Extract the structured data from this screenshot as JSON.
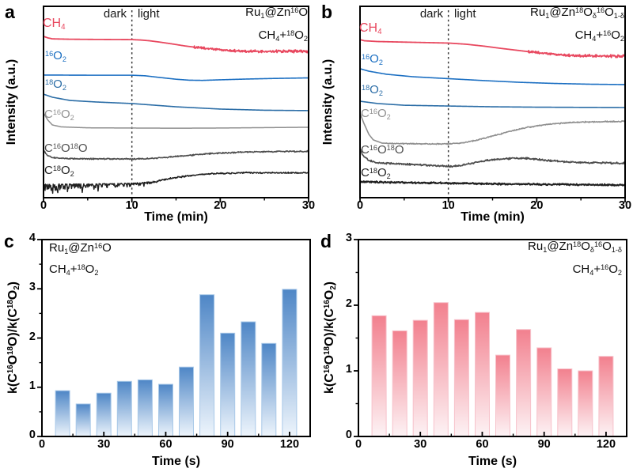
{
  "chart_data": [
    {
      "panel": "a",
      "letter": "a",
      "type": "line",
      "title": "Ru_{1}@Zn^{16}O",
      "subtitle": "CH_{4}+^{18}O_{2}",
      "dark_label": "dark",
      "light_label": "light",
      "xlabel": "Time (min)",
      "ylabel": "Intensity (a.u.)",
      "xlim": [
        0,
        30
      ],
      "ylim": [
        0,
        100
      ],
      "x_ticks": [
        0,
        10,
        20,
        30
      ],
      "x_minor_ticks": [
        5,
        15,
        25
      ],
      "light_on_min": 10,
      "series": [
        {
          "name": "CH4",
          "label": "CH_{4}",
          "color": "#e8485f",
          "width": 1.8,
          "points": [
            [
              0,
              84.3
            ],
            [
              0.5,
              83.5
            ],
            [
              1,
              83
            ],
            [
              3,
              82.8
            ],
            [
              6,
              82.7
            ],
            [
              10,
              82.6
            ],
            [
              11,
              82.4
            ],
            [
              12,
              82
            ],
            [
              13,
              81.4
            ],
            [
              14.5,
              80.4
            ],
            [
              16,
              79.3
            ],
            [
              17.5,
              78.4
            ],
            [
              19,
              77.7
            ],
            [
              21,
              76.9
            ],
            [
              23,
              76.5
            ],
            [
              25,
              76.3
            ],
            [
              27,
              76.6
            ],
            [
              30,
              76.4
            ]
          ],
          "noise": [
            {
              "from": 17,
              "to": 30,
              "amp0": 0.7,
              "amp1": 0.95,
              "bias": "sym"
            }
          ]
        },
        {
          "name": "16O2",
          "label": "^{16}O_{2}",
          "color": "#1b6fc2",
          "width": 1.6,
          "points": [
            [
              0,
              64.1
            ],
            [
              5,
              64
            ],
            [
              10,
              64
            ],
            [
              11.5,
              63.7
            ],
            [
              13,
              62.9
            ],
            [
              15,
              61.9
            ],
            [
              16.5,
              61.4
            ],
            [
              18,
              61.3
            ],
            [
              20,
              61.6
            ],
            [
              23,
              62
            ],
            [
              26,
              62.3
            ],
            [
              30,
              62.6
            ]
          ]
        },
        {
          "name": "18O2",
          "label": "^{18}O_{2}",
          "color": "#2b6da6",
          "width": 1.6,
          "points": [
            [
              0,
              54.1
            ],
            [
              1,
              52.5
            ],
            [
              3,
              50.8
            ],
            [
              6,
              50
            ],
            [
              10,
              49.2
            ],
            [
              15,
              47.5
            ],
            [
              20,
              46.3
            ],
            [
              25,
              45.7
            ],
            [
              30,
              45.5
            ]
          ]
        },
        {
          "name": "C16O2",
          "label": "C^{16}O_{2}",
          "color": "#8f8f8f",
          "width": 1.5,
          "points": [
            [
              0,
              44.2
            ],
            [
              0.5,
              40.5
            ],
            [
              1,
              38
            ],
            [
              2,
              37
            ],
            [
              5,
              36.5
            ],
            [
              10,
              36.4
            ],
            [
              15,
              36.3
            ],
            [
              20,
              36.4
            ],
            [
              25,
              36.6
            ],
            [
              30,
              36.8
            ]
          ]
        },
        {
          "name": "C16O18O",
          "label": "C^{16}O^{18}O",
          "color": "#4d4d4d",
          "width": 1.6,
          "points": [
            [
              0,
              24.8
            ],
            [
              0.4,
              22.3
            ],
            [
              1,
              20.9
            ],
            [
              3,
              20.4
            ],
            [
              6,
              20.3
            ],
            [
              10,
              20.2
            ],
            [
              12,
              20.4
            ],
            [
              14,
              21.1
            ],
            [
              16,
              21.9
            ],
            [
              18,
              22.8
            ],
            [
              20,
              23.3
            ],
            [
              23,
              23.9
            ],
            [
              26,
              24.1
            ],
            [
              30,
              24.2
            ]
          ],
          "noise": [
            {
              "from": 0,
              "to": 30,
              "amp0": 0.4,
              "amp1": 0.4,
              "bias": "sym"
            }
          ]
        },
        {
          "name": "C18O2",
          "label": "C^{18}O_{2}",
          "color": "#1f1f1f",
          "width": 1.5,
          "points": [
            [
              0,
              7
            ],
            [
              4,
              7.2
            ],
            [
              8,
              7.4
            ],
            [
              10,
              7.6
            ],
            [
              12,
              8.3
            ],
            [
              13.5,
              9.3
            ],
            [
              15,
              10.5
            ],
            [
              16.5,
              11.5
            ],
            [
              18,
              12.2
            ],
            [
              20,
              12.7
            ],
            [
              23,
              13
            ],
            [
              26,
              13
            ],
            [
              30,
              13
            ]
          ],
          "noise": [
            {
              "from": 0,
              "to": 13,
              "amp0": 3.5,
              "amp1": 0.9,
              "bias": "down"
            },
            {
              "from": 13,
              "to": 30,
              "amp0": 0.5,
              "amp1": 0.4,
              "bias": "sym"
            }
          ]
        }
      ]
    },
    {
      "panel": "b",
      "letter": "b",
      "type": "line",
      "title": "Ru_{1}@Zn^{18}O_{δ}^{16}O_{1-δ}",
      "subtitle": "CH_{4}+^{16}O_{2}",
      "dark_label": "dark",
      "light_label": "light",
      "xlabel": "Time (min)",
      "ylabel": "Intensity (a.u.)",
      "xlim": [
        0,
        30
      ],
      "ylim": [
        0,
        100
      ],
      "x_ticks": [
        0,
        10,
        20,
        30
      ],
      "x_minor_ticks": [
        5,
        15,
        25
      ],
      "light_on_min": 10,
      "series": [
        {
          "name": "CH4",
          "label": "CH_{4}",
          "color": "#e8485f",
          "width": 1.8,
          "points": [
            [
              0,
              82.6
            ],
            [
              0.5,
              82
            ],
            [
              2,
              81.6
            ],
            [
              5,
              81.3
            ],
            [
              8,
              81
            ],
            [
              10,
              80.8
            ],
            [
              12,
              80.2
            ],
            [
              14,
              79.2
            ],
            [
              16,
              78
            ],
            [
              18,
              76.9
            ],
            [
              20,
              75.8
            ],
            [
              22,
              74.9
            ],
            [
              24,
              74.3
            ],
            [
              26,
              74
            ],
            [
              30,
              74
            ]
          ],
          "noise": [
            {
              "from": 19,
              "to": 30,
              "amp0": 0.7,
              "amp1": 1.0,
              "bias": "sym"
            }
          ]
        },
        {
          "name": "16O2",
          "label": "^{16}O_{2}",
          "color": "#1b6fc2",
          "width": 1.6,
          "points": [
            [
              0,
              67.4
            ],
            [
              1,
              66.1
            ],
            [
              3,
              64.5
            ],
            [
              6,
              63.2
            ],
            [
              10,
              62.2
            ],
            [
              14,
              61.2
            ],
            [
              18,
              60.3
            ],
            [
              22,
              59.7
            ],
            [
              26,
              59.3
            ],
            [
              30,
              59.1
            ]
          ]
        },
        {
          "name": "18O2",
          "label": "^{18}O_{2}",
          "color": "#2b6da6",
          "width": 1.6,
          "points": [
            [
              0,
              50.4
            ],
            [
              2,
              49.2
            ],
            [
              5,
              48.3
            ],
            [
              10,
              47.9
            ],
            [
              15,
              47.5
            ],
            [
              20,
              47.3
            ],
            [
              30,
              47.1
            ]
          ]
        },
        {
          "name": "C16O2",
          "label": "C^{16}O_{2}",
          "color": "#8f8f8f",
          "width": 1.6,
          "points": [
            [
              0,
              44.2
            ],
            [
              0.4,
              39.3
            ],
            [
              1,
              33.1
            ],
            [
              1.5,
              30.2
            ],
            [
              2.5,
              28.5
            ],
            [
              5,
              28.2
            ],
            [
              8,
              28.1
            ],
            [
              10,
              28.1
            ],
            [
              11.5,
              28.5
            ],
            [
              13,
              29.8
            ],
            [
              15,
              32.2
            ],
            [
              17,
              34.7
            ],
            [
              19,
              36.8
            ],
            [
              21,
              38.2
            ],
            [
              23,
              39
            ],
            [
              25,
              39.5
            ],
            [
              27,
              39.7
            ],
            [
              30,
              39.9
            ]
          ],
          "noise": [
            {
              "from": 3,
              "to": 30,
              "amp0": 0.3,
              "amp1": 0.4,
              "bias": "sym"
            }
          ]
        },
        {
          "name": "C16O18O",
          "label": "C^{16}O^{18}O",
          "color": "#4d4d4d",
          "width": 1.7,
          "points": [
            [
              0,
              25.6
            ],
            [
              0.3,
              22.3
            ],
            [
              1,
              19.4
            ],
            [
              2,
              18.2
            ],
            [
              4,
              17.8
            ],
            [
              7,
              17.1
            ],
            [
              9,
              16.6
            ],
            [
              10,
              16.3
            ],
            [
              11,
              16.5
            ],
            [
              12.5,
              17.8
            ],
            [
              14,
              19.2
            ],
            [
              16,
              20.2
            ],
            [
              17.5,
              20.7
            ],
            [
              19,
              20.5
            ],
            [
              21,
              19.6
            ],
            [
              23,
              18.8
            ],
            [
              25,
              18.4
            ],
            [
              27,
              18.2
            ],
            [
              30,
              18
            ]
          ],
          "noise": [
            {
              "from": 0,
              "to": 30,
              "amp0": 0.55,
              "amp1": 0.55,
              "bias": "sym"
            }
          ]
        },
        {
          "name": "C18O2",
          "label": "C^{18}O_{2}",
          "color": "#1f1f1f",
          "width": 2.0,
          "points": [
            [
              0,
              8.3
            ],
            [
              5,
              7.9
            ],
            [
              10,
              7.6
            ],
            [
              15,
              7.2
            ],
            [
              20,
              7
            ],
            [
              25,
              6.8
            ],
            [
              30,
              6.6
            ]
          ],
          "noise": [
            {
              "from": 0,
              "to": 30,
              "amp0": 0.5,
              "amp1": 0.5,
              "bias": "sym"
            }
          ]
        }
      ]
    },
    {
      "panel": "c",
      "letter": "c",
      "type": "bar",
      "title": "Ru_{1}@Zn^{16}O",
      "subtitle": "CH_{4}+^{18}O_{2}",
      "xlabel": "Time (s)",
      "ylabel": "k(C^{16}O^{18}O)/k(C^{18}O_{2})",
      "xlim": [
        0,
        130
      ],
      "ylim": [
        0,
        4
      ],
      "x_ticks": [
        0,
        30,
        60,
        90,
        120
      ],
      "x_minor_ticks": [
        15,
        45,
        75,
        105
      ],
      "y_ticks": [
        0,
        1,
        2,
        3,
        4
      ],
      "y_minor_step": 0.5,
      "categories": [
        10,
        20,
        30,
        40,
        50,
        60,
        70,
        80,
        90,
        100,
        110,
        120
      ],
      "values": [
        0.93,
        0.66,
        0.88,
        1.12,
        1.15,
        1.06,
        1.41,
        2.88,
        2.1,
        2.33,
        1.89,
        2.99
      ],
      "bar_top_color": "#4e86c6",
      "bar_bottom_color": "#eef5fc",
      "bar_edge_color": "#a9c9e8"
    },
    {
      "panel": "d",
      "letter": "d",
      "type": "bar",
      "title": "Ru_{1}@Zn^{18}O_{δ}^{16}O_{1-δ}",
      "subtitle": "CH_{4}+^{16}O_{2}",
      "xlabel": "Time (s)",
      "ylabel": "k(C^{16}O^{18}O)/k(C^{16}O_{2})",
      "xlim": [
        0,
        130
      ],
      "ylim": [
        0,
        3
      ],
      "x_ticks": [
        0,
        30,
        60,
        90,
        120
      ],
      "x_minor_ticks": [
        15,
        45,
        75,
        105
      ],
      "y_ticks": [
        0,
        1,
        2,
        3
      ],
      "y_minor_step": 0.5,
      "categories": [
        10,
        20,
        30,
        40,
        50,
        60,
        70,
        80,
        90,
        100,
        110,
        120
      ],
      "values": [
        1.84,
        1.61,
        1.77,
        2.04,
        1.78,
        1.89,
        1.24,
        1.63,
        1.35,
        1.03,
        1.0,
        1.22
      ],
      "bar_top_color": "#f2808e",
      "bar_bottom_color": "#fdf3f5",
      "bar_edge_color": "#f7c2cb"
    }
  ]
}
